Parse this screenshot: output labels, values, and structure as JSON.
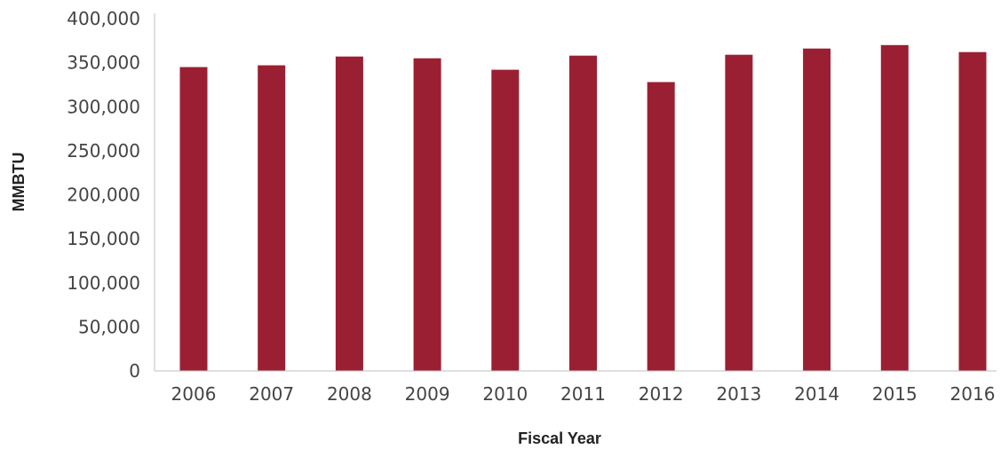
{
  "chart_data": {
    "type": "bar",
    "title": "",
    "xlabel": "Fiscal Year",
    "ylabel": "MMBTU",
    "categories": [
      "2006",
      "2007",
      "2008",
      "2009",
      "2010",
      "2011",
      "2012",
      "2013",
      "2014",
      "2015",
      "2016"
    ],
    "values": [
      345000,
      347000,
      357000,
      355000,
      342000,
      358000,
      328000,
      359000,
      366000,
      370000,
      362000
    ],
    "ylim": [
      0,
      400000
    ],
    "yticks": [
      0,
      50000,
      100000,
      150000,
      200000,
      250000,
      300000,
      350000,
      400000
    ],
    "ytick_labels": [
      "0",
      "50,000",
      "100,000",
      "150,000",
      "200,000",
      "250,000",
      "300,000",
      "350,000",
      "400,000"
    ],
    "bar_color": "#9b1f32",
    "grid": false,
    "legend": "none"
  }
}
